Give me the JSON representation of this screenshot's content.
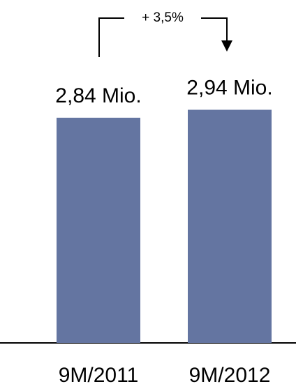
{
  "chart_data": {
    "type": "bar",
    "categories": [
      "9M/2011",
      "9M/2012"
    ],
    "values": [
      2.84,
      2.94
    ],
    "value_labels": [
      "2,84 Mio.",
      "2,94 Mio."
    ],
    "annotation": "+ 3,5%",
    "title": "",
    "xlabel": "",
    "ylabel": "",
    "ylim": [
      0,
      3.05
    ],
    "grid": false,
    "legend": "none",
    "bar_color": "#6475A1",
    "axis_color": "#000000"
  }
}
